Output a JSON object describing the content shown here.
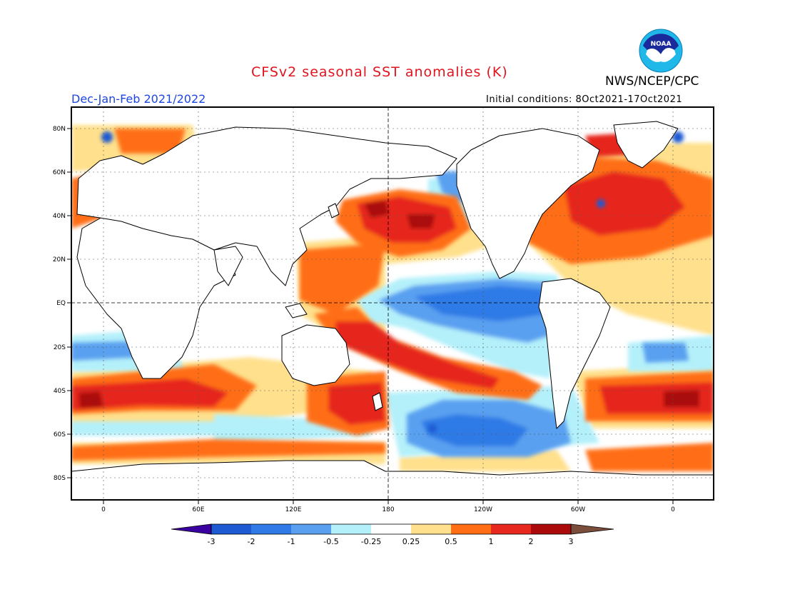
{
  "title": "CFSv2 seasonal SST anomalies (K)",
  "season": "Dec-Jan-Feb 2021/2022",
  "initial_conditions": "Initial conditions: 8Oct2021-17Oct2021",
  "agency": "NWS/NCEP/CPC",
  "logo": {
    "text": "NOAA"
  },
  "lat_labels": [
    "80N",
    "60N",
    "40N",
    "20N",
    "EQ",
    "20S",
    "40S",
    "60S",
    "80S"
  ],
  "lon_labels": [
    "0",
    "60E",
    "120E",
    "180",
    "120W",
    "60W",
    "0"
  ],
  "colorbar": {
    "labels": [
      "-3",
      "-2",
      "-1",
      "-0.5",
      "-0.25",
      "0.25",
      "0.5",
      "1",
      "2",
      "3"
    ],
    "colors": [
      "#3a00a0",
      "#1e5ad2",
      "#2f7ae6",
      "#5aa0f0",
      "#b4f0fa",
      "#ffffff",
      "#ffe08c",
      "#ff6e14",
      "#e6281e",
      "#aa0a0a",
      "#7a4e3a"
    ]
  },
  "anomaly_colors": {
    "strong_warm": "#aa0a0a",
    "warm": "#e6281e",
    "moderate_warm": "#ff6e14",
    "weak_warm": "#ffe08c",
    "weak_cool": "#b4f0fa",
    "cool": "#5aa0f0",
    "moderate_cool": "#2f7ae6",
    "strong_cool": "#1e5ad2"
  }
}
